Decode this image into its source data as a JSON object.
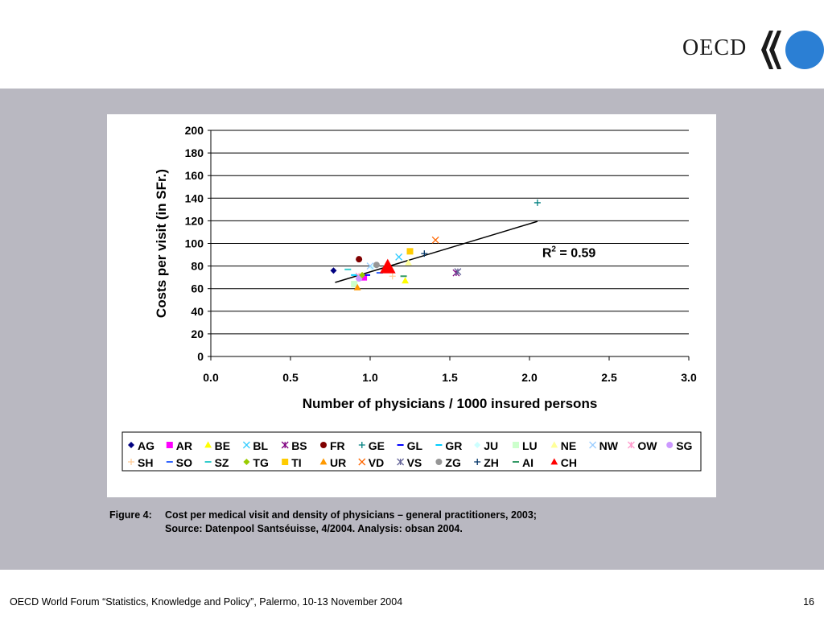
{
  "logo": {
    "text": "OECD",
    "accent": "#2b7fd4"
  },
  "caption": {
    "label": "Figure 4:",
    "line1": "Cost per medical visit and density of physicians – general practitioners, 2003;",
    "line2": "Source: Datenpool Santséuisse, 4/2004. Analysis: obsan 2004."
  },
  "footer": {
    "text": "OECD World Forum “Statistics, Knowledge and Policy”, Palermo, 10-13 November 2004",
    "page": "16"
  },
  "chart_data": {
    "type": "scatter",
    "xlabel": "Number of physicians / 1000 insured persons",
    "ylabel": "Costs per visit (in SFr.)",
    "xlim": [
      0,
      3.0
    ],
    "ylim": [
      0,
      200
    ],
    "xticks": [
      "0.0",
      "0.5",
      "1.0",
      "1.5",
      "2.0",
      "2.5",
      "3.0"
    ],
    "yticks": [
      "0",
      "20",
      "40",
      "60",
      "80",
      "100",
      "120",
      "140",
      "160",
      "180",
      "200"
    ],
    "grid": "horizontal",
    "legend_position": "bottom",
    "annotation": {
      "text": "R",
      "sup": "2",
      "rest": " = 0.59",
      "x": 2.08,
      "y": 88
    },
    "trendline": {
      "x": [
        0.78,
        2.05
      ],
      "y": [
        65.5,
        119.5
      ]
    },
    "series": [
      {
        "name": "AG",
        "marker": "diamond",
        "color": "#000080",
        "x": 0.77,
        "y": 76
      },
      {
        "name": "AR",
        "marker": "square",
        "color": "#ff00ff",
        "x": 0.96,
        "y": 70
      },
      {
        "name": "BE",
        "marker": "triangle",
        "color": "#ffff00",
        "x": 1.22,
        "y": 67
      },
      {
        "name": "BL",
        "marker": "x",
        "color": "#33ccff",
        "x": 1.18,
        "y": 88
      },
      {
        "name": "BS",
        "marker": "star",
        "color": "#800080",
        "x": 1.54,
        "y": 74
      },
      {
        "name": "FR",
        "marker": "circle",
        "color": "#800000",
        "x": 0.93,
        "y": 86
      },
      {
        "name": "GE",
        "marker": "plus",
        "color": "#008080",
        "x": 2.05,
        "y": 136
      },
      {
        "name": "GL",
        "marker": "dash",
        "color": "#0000ff",
        "x": 0.98,
        "y": 72
      },
      {
        "name": "GR",
        "marker": "dash",
        "color": "#00ccff",
        "x": 0.9,
        "y": 72
      },
      {
        "name": "JU",
        "marker": "diamond",
        "color": "#ccffff",
        "x": 1.01,
        "y": 79
      },
      {
        "name": "LU",
        "marker": "square",
        "color": "#ccffcc",
        "x": 0.9,
        "y": 64
      },
      {
        "name": "NE",
        "marker": "triangle",
        "color": "#ffff99",
        "x": 1.24,
        "y": 83
      },
      {
        "name": "NW",
        "marker": "x",
        "color": "#99ccff",
        "x": 1.0,
        "y": 80
      },
      {
        "name": "OW",
        "marker": "star",
        "color": "#ff99cc",
        "x": 0.93,
        "y": 71
      },
      {
        "name": "SG",
        "marker": "circle",
        "color": "#cc99ff",
        "x": 0.93,
        "y": 69
      },
      {
        "name": "SH",
        "marker": "plus",
        "color": "#ffcc99",
        "x": 1.14,
        "y": 71
      },
      {
        "name": "SO",
        "marker": "dash",
        "color": "#3366ff",
        "x": 1.06,
        "y": 74
      },
      {
        "name": "SZ",
        "marker": "dash",
        "color": "#33cccc",
        "x": 0.86,
        "y": 77
      },
      {
        "name": "TG",
        "marker": "diamond",
        "color": "#99cc00",
        "x": 0.95,
        "y": 72
      },
      {
        "name": "TI",
        "marker": "square",
        "color": "#ffcc00",
        "x": 1.25,
        "y": 93
      },
      {
        "name": "UR",
        "marker": "triangle",
        "color": "#ff9900",
        "x": 0.92,
        "y": 61
      },
      {
        "name": "VD",
        "marker": "x",
        "color": "#ff6600",
        "x": 1.41,
        "y": 103
      },
      {
        "name": "VS",
        "marker": "star",
        "color": "#666699",
        "x": 1.55,
        "y": 75
      },
      {
        "name": "ZG",
        "marker": "circle",
        "color": "#969696",
        "x": 1.04,
        "y": 81
      },
      {
        "name": "ZH",
        "marker": "plus",
        "color": "#003366",
        "x": 1.34,
        "y": 91
      },
      {
        "name": "AI",
        "marker": "dash",
        "color": "#339966",
        "x": 1.21,
        "y": 71
      },
      {
        "name": "CH",
        "marker": "triangle",
        "color": "#ff0000",
        "x": 1.11,
        "y": 79,
        "size": "large"
      }
    ]
  }
}
